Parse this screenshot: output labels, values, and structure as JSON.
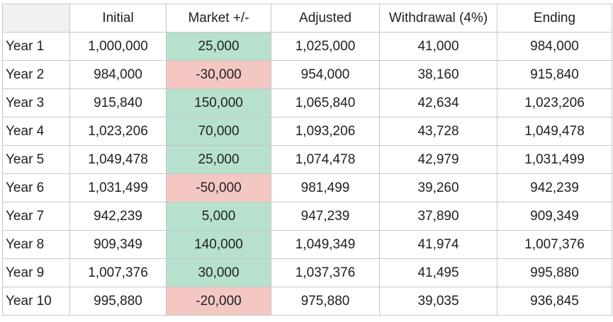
{
  "colors": {
    "positive_fill": "#b7e1cd",
    "negative_fill": "#f4c7c3",
    "corner_fill": "#f1f1f1"
  },
  "headers": [
    "",
    "Initial",
    "Market +/-",
    "Adjusted",
    "Withdrawal (4%)",
    "Ending"
  ],
  "rows": [
    {
      "label": "Year 1",
      "initial": "1,000,000",
      "market": "25,000",
      "market_sign": "pos",
      "adjusted": "1,025,000",
      "withdrawal": "41,000",
      "ending": "984,000"
    },
    {
      "label": "Year 2",
      "initial": "984,000",
      "market": "-30,000",
      "market_sign": "neg",
      "adjusted": "954,000",
      "withdrawal": "38,160",
      "ending": "915,840"
    },
    {
      "label": "Year 3",
      "initial": "915,840",
      "market": "150,000",
      "market_sign": "pos",
      "adjusted": "1,065,840",
      "withdrawal": "42,634",
      "ending": "1,023,206"
    },
    {
      "label": "Year 4",
      "initial": "1,023,206",
      "market": "70,000",
      "market_sign": "pos",
      "adjusted": "1,093,206",
      "withdrawal": "43,728",
      "ending": "1,049,478"
    },
    {
      "label": "Year 5",
      "initial": "1,049,478",
      "market": "25,000",
      "market_sign": "pos",
      "adjusted": "1,074,478",
      "withdrawal": "42,979",
      "ending": "1,031,499"
    },
    {
      "label": "Year 6",
      "initial": "1,031,499",
      "market": "-50,000",
      "market_sign": "neg",
      "adjusted": "981,499",
      "withdrawal": "39,260",
      "ending": "942,239"
    },
    {
      "label": "Year 7",
      "initial": "942,239",
      "market": "5,000",
      "market_sign": "pos",
      "adjusted": "947,239",
      "withdrawal": "37,890",
      "ending": "909,349"
    },
    {
      "label": "Year 8",
      "initial": "909,349",
      "market": "140,000",
      "market_sign": "pos",
      "adjusted": "1,049,349",
      "withdrawal": "41,974",
      "ending": "1,007,376"
    },
    {
      "label": "Year 9",
      "initial": "1,007,376",
      "market": "30,000",
      "market_sign": "pos",
      "adjusted": "1,037,376",
      "withdrawal": "41,495",
      "ending": "995,880"
    },
    {
      "label": "Year 10",
      "initial": "995,880",
      "market": "-20,000",
      "market_sign": "neg",
      "adjusted": "975,880",
      "withdrawal": "39,035",
      "ending": "936,845"
    }
  ]
}
